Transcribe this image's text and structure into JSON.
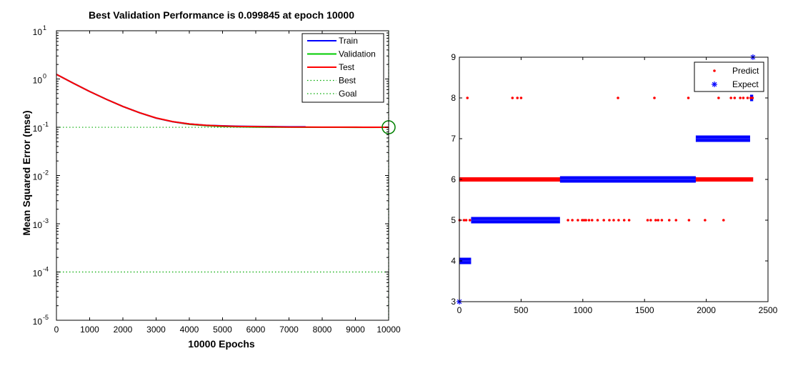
{
  "chart_data": [
    {
      "type": "line",
      "title": "Best Validation Performance is 0.099845 at epoch 10000",
      "xlabel": "10000 Epochs",
      "ylabel": "Mean Squared Error  (mse)",
      "yscale": "log",
      "xlim": [
        0,
        10000
      ],
      "ylim": [
        1e-05,
        10
      ],
      "xticks": [
        0,
        1000,
        2000,
        3000,
        4000,
        5000,
        6000,
        7000,
        8000,
        9000,
        10000
      ],
      "xtick_labels": [
        "0",
        "1000",
        "2000",
        "3000",
        "4000",
        "5000",
        "6000",
        "7000",
        "8000",
        "9000",
        "10000"
      ],
      "yticks": [
        10,
        1,
        0.1,
        0.01,
        0.001,
        0.0001,
        1e-05
      ],
      "ytick_exponents": [
        "1",
        "0",
        "-1",
        "-2",
        "-3",
        "-4",
        "-5"
      ],
      "ytick_base": "10",
      "legend_position": "top-right",
      "grid": false,
      "series": [
        {
          "name": "Train",
          "color": "#0000ff",
          "style": "solid",
          "x": [
            0,
            500,
            1000,
            1500,
            2000,
            2500,
            3000,
            3500,
            4000,
            4500,
            5000,
            5500,
            6000,
            6500,
            7000,
            7500
          ],
          "y": [
            1.25,
            0.82,
            0.55,
            0.38,
            0.27,
            0.2,
            0.155,
            0.13,
            0.117,
            0.11,
            0.107,
            0.105,
            0.104,
            0.103,
            0.102,
            0.102
          ]
        },
        {
          "name": "Validation",
          "color": "#00cc00",
          "style": "solid",
          "x": [
            0,
            500,
            1000,
            1500,
            2000,
            2500,
            3000,
            3500,
            4000,
            4500,
            5000,
            5500,
            6000,
            6500,
            7000,
            7500,
            8000,
            8500,
            9000,
            9500,
            10000
          ],
          "y": [
            1.25,
            0.82,
            0.55,
            0.38,
            0.27,
            0.2,
            0.155,
            0.13,
            0.115,
            0.108,
            0.104,
            0.102,
            0.101,
            0.1005,
            0.1002,
            0.1,
            0.0999,
            0.0999,
            0.0998,
            0.0998,
            0.099845
          ]
        },
        {
          "name": "Test",
          "color": "#ff0000",
          "style": "solid",
          "x": [
            0,
            500,
            1000,
            1500,
            2000,
            2500,
            3000,
            3500,
            4000,
            4500,
            5000,
            5500,
            6000,
            6500,
            7000,
            7500,
            8000,
            8500,
            9000,
            9500,
            10000
          ],
          "y": [
            1.25,
            0.82,
            0.55,
            0.38,
            0.27,
            0.2,
            0.156,
            0.131,
            0.117,
            0.11,
            0.106,
            0.104,
            0.103,
            0.102,
            0.101,
            0.101,
            0.1005,
            0.1003,
            0.1002,
            0.1001,
            0.1
          ]
        },
        {
          "name": "Best",
          "color": "#00aa00",
          "style": "dotted",
          "best_epoch": 10000,
          "best_value": 0.099845
        },
        {
          "name": "Goal",
          "color": "#00aa00",
          "style": "dotted",
          "goal_value": 0.0001
        }
      ]
    },
    {
      "type": "scatter",
      "xlim": [
        0,
        2500
      ],
      "ylim": [
        3,
        9
      ],
      "xticks": [
        0,
        500,
        1000,
        1500,
        2000,
        2500
      ],
      "xtick_labels": [
        "0",
        "500",
        "1000",
        "1500",
        "2000",
        "2500"
      ],
      "yticks": [
        3,
        4,
        5,
        6,
        7,
        8,
        9
      ],
      "ytick_labels": [
        "3",
        "4",
        "5",
        "6",
        "7",
        "8",
        "9"
      ],
      "legend_position": "top-right",
      "grid": false,
      "series": [
        {
          "name": "Predict",
          "color": "#ff0000",
          "marker": "dot",
          "bands": [
            {
              "y": 6,
              "x_from": 0,
              "x_to": 2380
            }
          ],
          "points": [
            [
              2,
              5
            ],
            [
              38,
              5
            ],
            [
              55,
              5
            ],
            [
              65,
              8
            ],
            [
              85,
              5
            ],
            [
              430,
              8
            ],
            [
              470,
              8
            ],
            [
              500,
              8
            ],
            [
              880,
              5
            ],
            [
              915,
              5
            ],
            [
              960,
              5
            ],
            [
              995,
              5
            ],
            [
              1010,
              5
            ],
            [
              1025,
              5
            ],
            [
              1050,
              5
            ],
            [
              1075,
              5
            ],
            [
              1120,
              5
            ],
            [
              1170,
              5
            ],
            [
              1215,
              5
            ],
            [
              1250,
              5
            ],
            [
              1285,
              8
            ],
            [
              1290,
              5
            ],
            [
              1335,
              5
            ],
            [
              1375,
              5
            ],
            [
              1525,
              5
            ],
            [
              1550,
              5
            ],
            [
              1580,
              8
            ],
            [
              1590,
              5
            ],
            [
              1610,
              5
            ],
            [
              1640,
              5
            ],
            [
              1700,
              5
            ],
            [
              1755,
              5
            ],
            [
              1855,
              8
            ],
            [
              1860,
              5
            ],
            [
              1990,
              5
            ],
            [
              2100,
              8
            ],
            [
              2140,
              5
            ],
            [
              2200,
              8
            ],
            [
              2230,
              8
            ],
            [
              2275,
              8
            ],
            [
              2300,
              8
            ],
            [
              2335,
              8
            ],
            [
              2360,
              8
            ],
            [
              2375,
              8
            ]
          ]
        },
        {
          "name": "Expect",
          "color": "#0000ff",
          "marker": "star",
          "bands": [
            {
              "y": 4,
              "x_from": 0,
              "x_to": 95
            },
            {
              "y": 5,
              "x_from": 95,
              "x_to": 815
            },
            {
              "y": 6,
              "x_from": 815,
              "x_to": 1915
            },
            {
              "y": 7,
              "x_from": 1915,
              "x_to": 2355
            },
            {
              "y": 8,
              "x_from": 2355,
              "x_to": 2380
            }
          ],
          "points": [
            [
              0,
              3
            ],
            [
              2378,
              9
            ]
          ]
        }
      ]
    }
  ]
}
